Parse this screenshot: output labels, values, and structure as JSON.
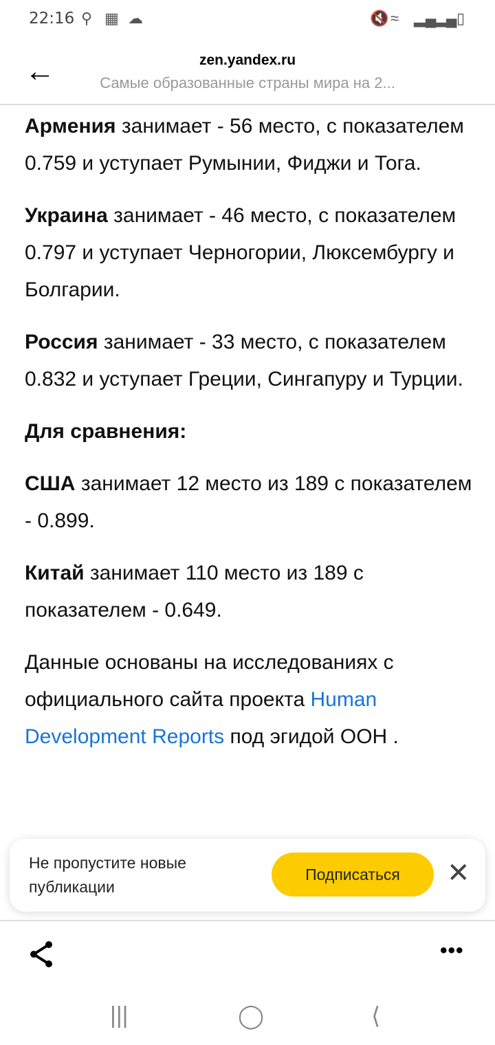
{
  "status_bar": {
    "time": "22:16"
  },
  "header": {
    "site": "zen.yandex.ru",
    "subtitle": "Самые образованные страны мира на 2..."
  },
  "article": {
    "paragraphs": [
      {
        "bold": "Армения",
        "text": " занимает - 56 место, с показателем 0.759 и уступает Румынии, Фиджи и Тога."
      },
      {
        "bold": "Украина",
        "text": " занимает - 46 место, с показателем 0.797 и уступает Черногории, Люксембургу и Болгарии."
      },
      {
        "bold": "Россия",
        "text": " занимает - 33 место, с показателем 0.832 и уступает Греции, Сингапуру и Турции."
      },
      {
        "bold": "Для сравнения:",
        "text": ""
      },
      {
        "bold": "США",
        "text": " занимает 12 место из 189 с показателем - 0.899."
      },
      {
        "bold": "Китай",
        "text": " занимает 110 место из 189 с показателем - 0.649."
      }
    ],
    "source": {
      "before": "Данные основаны на исследованиях с официального сайта проекта ",
      "link": "Human Development Reports",
      "after": " под эгидой ООН ."
    }
  },
  "subscribe_card": {
    "message": "Не пропустите новые публикации",
    "button": "Подписаться"
  },
  "colors": {
    "link": "#1a73d9",
    "subscribe_button": "#fccc00"
  }
}
